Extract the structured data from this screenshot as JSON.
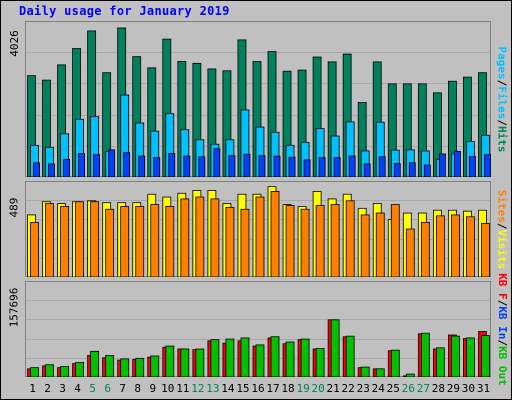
{
  "title": "Daily usage for January 2019",
  "colors": {
    "hits": "#00805c",
    "files": "#00c0ff",
    "pages": "#0040ff",
    "visits": "#ffff00",
    "sites": "#ff8000",
    "kb_in": "#00c000",
    "kb_out": "#ff0000",
    "background": "#c0c0c0",
    "weekend_label": "#00805c"
  },
  "axes": {
    "hits_max": "4026",
    "visits_max": "489",
    "kbytes_max": "157696"
  },
  "legend": {
    "hits_panel": {
      "pages": "Pages",
      "files": "Files",
      "hits": "Hits",
      "sep": "/"
    },
    "visits_panel": {
      "sites": "Sites",
      "visits": "Visits",
      "sep": "/"
    },
    "kbytes_panel": {
      "kb_out": "KB F",
      "kb_in": "KB In",
      "out": "KB Out",
      "sep": "/"
    }
  },
  "chart_data": [
    {
      "type": "bar",
      "title": "Daily usage for January 2019",
      "ylim": [
        0,
        4026
      ],
      "categories": [
        "1",
        "2",
        "3",
        "4",
        "5",
        "6",
        "7",
        "8",
        "9",
        "10",
        "11",
        "12",
        "13",
        "14",
        "15",
        "16",
        "17",
        "18",
        "19",
        "20",
        "21",
        "22",
        "23",
        "24",
        "25",
        "26",
        "27",
        "28",
        "29",
        "30",
        "31"
      ],
      "weekend": [
        5,
        6,
        12,
        13,
        19,
        20,
        26,
        27
      ],
      "series": [
        {
          "name": "Hits",
          "values": [
            2720,
            2600,
            3010,
            3450,
            3920,
            2800,
            4000,
            3230,
            2930,
            3700,
            3100,
            3050,
            2900,
            2850,
            3680,
            3100,
            3370,
            2840,
            2870,
            3220,
            3090,
            3300,
            2000,
            3090,
            2500,
            2500,
            2500,
            2260,
            2570,
            2680,
            2800
          ]
        },
        {
          "name": "Files",
          "values": [
            850,
            790,
            1160,
            1550,
            1620,
            680,
            2200,
            1450,
            1230,
            1700,
            1270,
            1000,
            880,
            1000,
            1800,
            1340,
            1200,
            850,
            930,
            1300,
            1100,
            1480,
            700,
            1470,
            720,
            730,
            700,
            470,
            620,
            950,
            1120
          ]
        },
        {
          "name": "Pages",
          "values": [
            380,
            350,
            470,
            630,
            600,
            730,
            650,
            560,
            520,
            630,
            560,
            540,
            760,
            570,
            610,
            570,
            560,
            530,
            460,
            520,
            520,
            560,
            350,
            540,
            360,
            380,
            320,
            620,
            690,
            550,
            600
          ]
        }
      ]
    },
    {
      "type": "bar",
      "ylim": [
        0,
        489
      ],
      "categories": [
        "1",
        "2",
        "3",
        "4",
        "5",
        "6",
        "7",
        "8",
        "9",
        "10",
        "11",
        "12",
        "13",
        "14",
        "15",
        "16",
        "17",
        "18",
        "19",
        "20",
        "21",
        "22",
        "23",
        "24",
        "25",
        "26",
        "27",
        "28",
        "29",
        "30",
        "31"
      ],
      "series": [
        {
          "name": "Visits",
          "values": [
            330,
            400,
            390,
            400,
            405,
            395,
            395,
            395,
            440,
            425,
            445,
            460,
            460,
            390,
            440,
            440,
            480,
            385,
            375,
            455,
            415,
            440,
            365,
            390,
            305,
            340,
            340,
            355,
            355,
            350,
            355
          ]
        },
        {
          "name": "Sites",
          "values": [
            290,
            390,
            375,
            400,
            400,
            360,
            375,
            375,
            385,
            375,
            415,
            425,
            415,
            370,
            360,
            425,
            455,
            380,
            360,
            380,
            385,
            405,
            330,
            340,
            385,
            255,
            290,
            325,
            330,
            320,
            285
          ]
        }
      ]
    },
    {
      "type": "bar",
      "ylim": [
        0,
        157696
      ],
      "categories": [
        "1",
        "2",
        "3",
        "4",
        "5",
        "6",
        "7",
        "8",
        "9",
        "10",
        "11",
        "12",
        "13",
        "14",
        "15",
        "16",
        "17",
        "18",
        "19",
        "20",
        "21",
        "22",
        "23",
        "24",
        "25",
        "26",
        "27",
        "28",
        "29",
        "30",
        "31"
      ],
      "series": [
        {
          "name": "KB In",
          "values": [
            16000,
            21000,
            18000,
            25000,
            44000,
            37000,
            31000,
            32000,
            36000,
            53000,
            48000,
            48000,
            64000,
            65000,
            67000,
            55000,
            69000,
            60000,
            65000,
            49000,
            98000,
            70000,
            17000,
            14000,
            46000,
            5000,
            75000,
            50000,
            70000,
            67000,
            71000
          ]
        },
        {
          "name": "KB F",
          "values": [
            14000,
            19000,
            16000,
            23000,
            37000,
            33000,
            29000,
            30000,
            34000,
            51000,
            48000,
            47000,
            62000,
            58000,
            62000,
            53000,
            67000,
            57000,
            64000,
            48000,
            98000,
            69000,
            16000,
            14000,
            45000,
            2000,
            74000,
            48000,
            72000,
            66000,
            78000
          ]
        }
      ]
    }
  ]
}
